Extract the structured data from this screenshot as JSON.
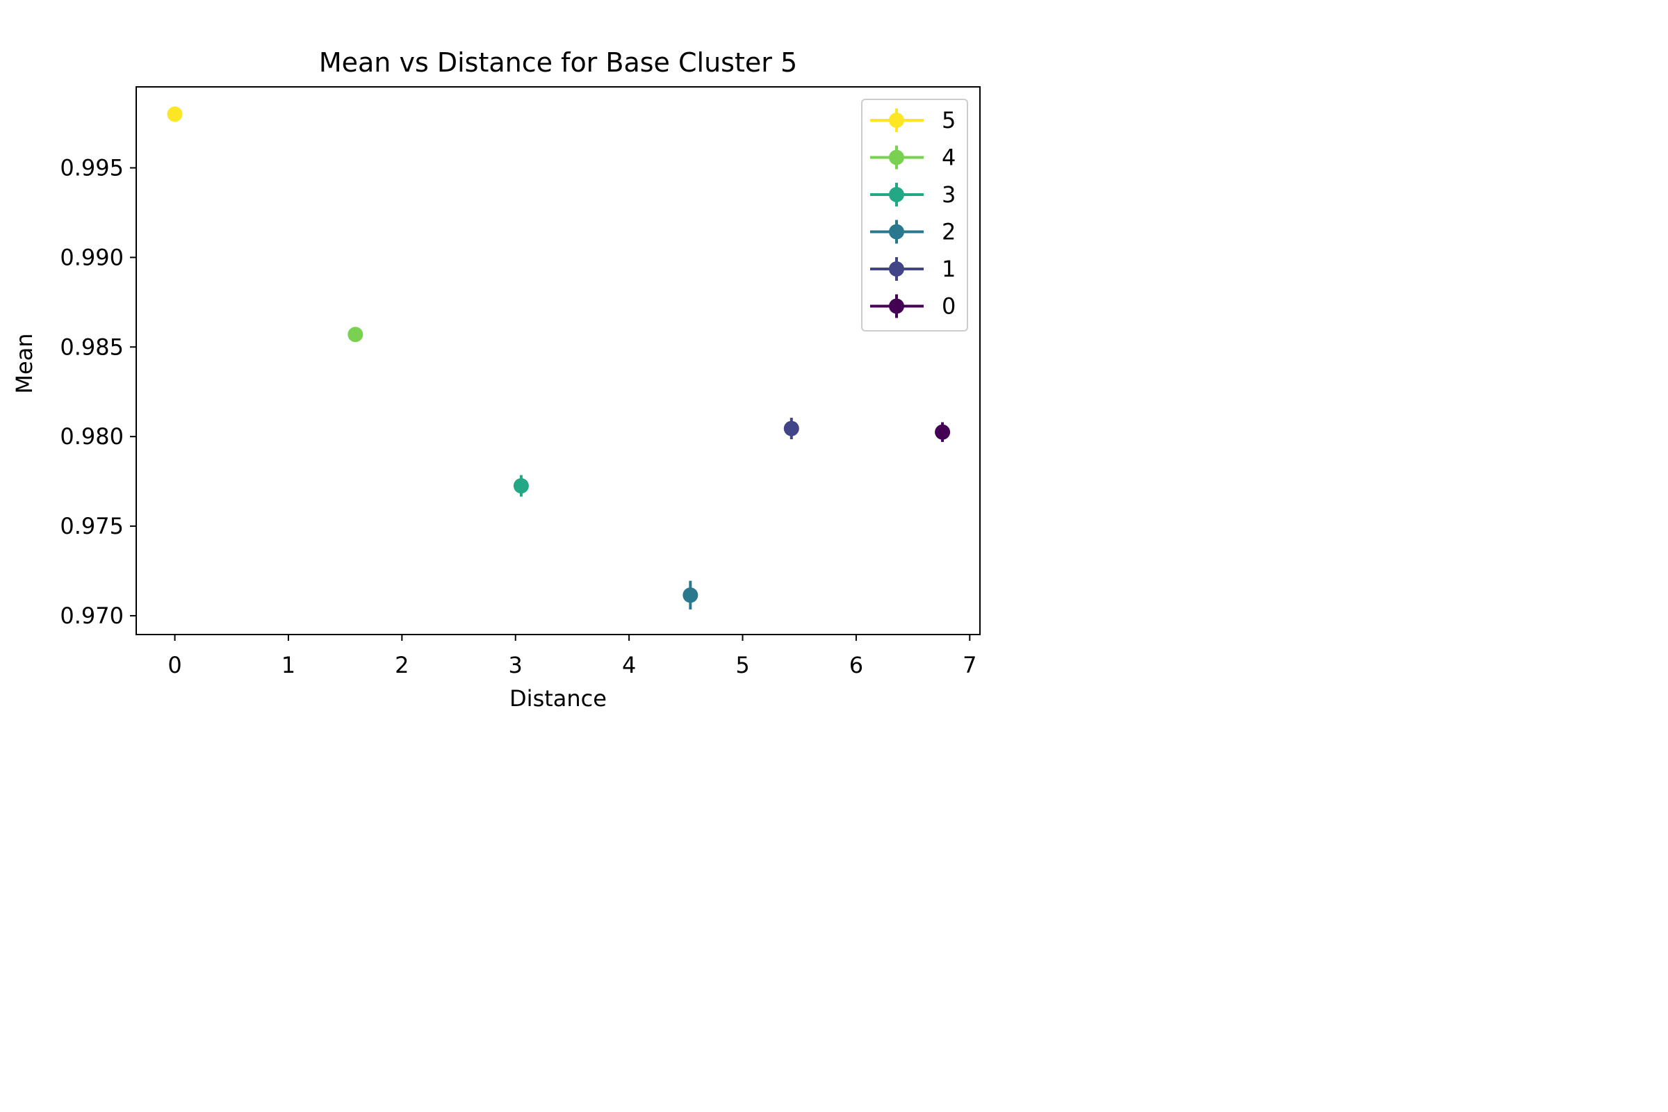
{
  "chart_data": {
    "type": "scatter",
    "title": "Mean vs Distance for Base Cluster 5",
    "xlabel": "Distance",
    "ylabel": "Mean",
    "xlim": [
      -0.34,
      7.09
    ],
    "ylim": [
      0.96895,
      0.99952
    ],
    "xticks": [
      0,
      1,
      2,
      3,
      4,
      5,
      6,
      7
    ],
    "xtick_labels": [
      "0",
      "1",
      "2",
      "3",
      "4",
      "5",
      "6",
      "7"
    ],
    "yticks": [
      0.97,
      0.975,
      0.98,
      0.985,
      0.99,
      0.995
    ],
    "ytick_labels": [
      "0.970",
      "0.975",
      "0.980",
      "0.985",
      "0.990",
      "0.995"
    ],
    "grid": false,
    "legend_position": "top-right",
    "error_bars": true,
    "series": [
      {
        "name": "5",
        "color": "#fde725",
        "x": 0.0,
        "y": 0.998,
        "yerr": 2e-05
      },
      {
        "name": "4",
        "color": "#7ad151",
        "x": 1.59,
        "y": 0.9857,
        "yerr": 0.0001
      },
      {
        "name": "3",
        "color": "#22a884",
        "x": 3.05,
        "y": 0.97725,
        "yerr": 0.0006
      },
      {
        "name": "2",
        "color": "#2a788e",
        "x": 4.54,
        "y": 0.97115,
        "yerr": 0.0008
      },
      {
        "name": "1",
        "color": "#414487",
        "x": 5.43,
        "y": 0.98045,
        "yerr": 0.0006
      },
      {
        "name": "0",
        "color": "#440154",
        "x": 6.76,
        "y": 0.98025,
        "yerr": 0.00055
      }
    ]
  }
}
